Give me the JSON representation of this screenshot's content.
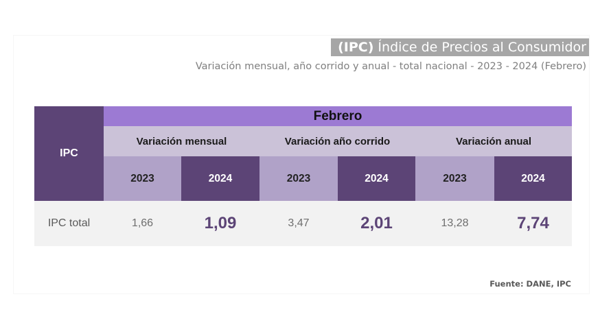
{
  "header": {
    "title_abbr": "(IPC)",
    "title_rest": " Índice de Precios al Consumidor",
    "subtitle": "Variación mensual, año corrido y anual - total nacional  - 2023 - 2024 (Febrero)"
  },
  "table": {
    "row_header": "IPC",
    "month": "Febrero",
    "groups": [
      "Variación mensual",
      "Variación año corrido",
      "Variación anual"
    ],
    "years": [
      "2023",
      "2024",
      "2023",
      "2024",
      "2023",
      "2024"
    ],
    "rows": [
      {
        "label": "IPC total",
        "values": [
          "1,66",
          "1,09",
          "3,47",
          "2,01",
          "13,28",
          "7,74"
        ]
      }
    ]
  },
  "footer": {
    "source": "Fuente: DANE, IPC"
  },
  "colors": {
    "dark_purple": "#5c4476",
    "light_purple": "#9c7ad3",
    "lavender": "#cbc2d8",
    "mid_lavender": "#b0a2c8",
    "title_gray": "#a6a6a6"
  }
}
